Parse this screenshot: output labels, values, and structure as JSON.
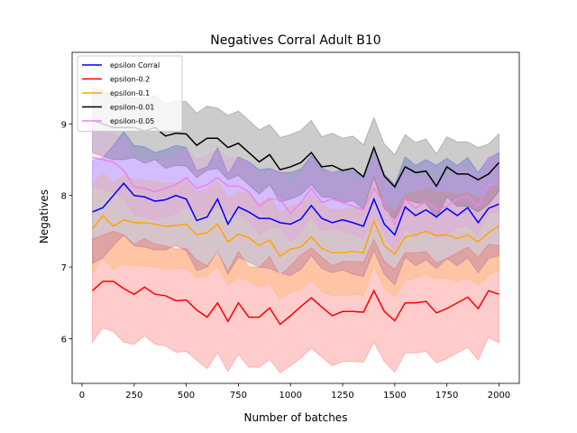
{
  "chart_data": {
    "type": "line",
    "title": "Negatives Corral Adult B10",
    "xlabel": "Number of batches",
    "ylabel": "Negatives",
    "x": [
      50,
      100,
      150,
      200,
      250,
      300,
      350,
      400,
      450,
      500,
      550,
      600,
      650,
      700,
      750,
      800,
      850,
      900,
      950,
      1000,
      1050,
      1100,
      1150,
      1200,
      1250,
      1300,
      1350,
      1400,
      1450,
      1500,
      1550,
      1600,
      1650,
      1700,
      1750,
      1800,
      1850,
      1900,
      1950,
      2000
    ],
    "xlim": [
      -47.5,
      2097.5
    ],
    "xticks": [
      0,
      250,
      500,
      750,
      1000,
      1250,
      1500,
      1750,
      2000
    ],
    "ylim": [
      5.375,
      10.0
    ],
    "yticks": [
      6,
      7,
      8,
      9
    ],
    "legend": "upper left",
    "band_opacity": 0.2,
    "series": [
      {
        "name": "epsilon Corral",
        "color": "#0000ff",
        "values": [
          7.77,
          7.83,
          8.0,
          8.17,
          8.0,
          7.98,
          7.92,
          7.94,
          8.0,
          7.95,
          7.65,
          7.7,
          7.95,
          7.6,
          7.84,
          7.77,
          7.68,
          7.68,
          7.62,
          7.6,
          7.67,
          7.86,
          7.68,
          7.62,
          7.66,
          7.62,
          7.57,
          7.95,
          7.6,
          7.45,
          7.84,
          7.72,
          7.8,
          7.7,
          7.82,
          7.72,
          7.83,
          7.62,
          7.82,
          7.88
        ],
        "std": [
          0.72,
          0.7,
          0.7,
          0.72,
          0.7,
          0.7,
          0.68,
          0.7,
          0.7,
          0.72,
          0.7,
          0.7,
          0.72,
          0.7,
          0.7,
          0.7,
          0.68,
          0.7,
          0.7,
          0.72,
          0.7,
          0.7,
          0.7,
          0.7,
          0.7,
          0.72,
          0.7,
          0.72,
          0.7,
          0.7,
          0.7,
          0.7,
          0.7,
          0.72,
          0.7,
          0.7,
          0.7,
          0.7,
          0.7,
          0.72
        ]
      },
      {
        "name": "epsilon-0.2",
        "color": "#ff0000",
        "values": [
          6.67,
          6.8,
          6.8,
          6.7,
          6.62,
          6.72,
          6.62,
          6.6,
          6.53,
          6.54,
          6.4,
          6.3,
          6.5,
          6.24,
          6.5,
          6.3,
          6.3,
          6.43,
          6.2,
          6.32,
          6.45,
          6.57,
          6.44,
          6.32,
          6.38,
          6.38,
          6.37,
          6.67,
          6.38,
          6.25,
          6.5,
          6.5,
          6.52,
          6.36,
          6.42,
          6.5,
          6.58,
          6.42,
          6.67,
          6.62
        ],
        "std": [
          0.72,
          0.65,
          0.7,
          0.75,
          0.7,
          0.68,
          0.7,
          0.7,
          0.72,
          0.72,
          0.7,
          0.72,
          0.7,
          0.7,
          0.72,
          0.7,
          0.7,
          0.72,
          0.68,
          0.7,
          0.72,
          0.7,
          0.7,
          0.7,
          0.7,
          0.7,
          0.7,
          0.72,
          0.7,
          0.72,
          0.7,
          0.7,
          0.7,
          0.7,
          0.7,
          0.7,
          0.7,
          0.72,
          0.65,
          0.68
        ]
      },
      {
        "name": "epsilon-0.1",
        "color": "#ffa500",
        "values": [
          7.53,
          7.72,
          7.57,
          7.66,
          7.62,
          7.62,
          7.6,
          7.57,
          7.58,
          7.6,
          7.45,
          7.48,
          7.6,
          7.35,
          7.46,
          7.41,
          7.3,
          7.38,
          7.15,
          7.25,
          7.28,
          7.42,
          7.26,
          7.2,
          7.2,
          7.22,
          7.2,
          7.65,
          7.3,
          7.18,
          7.42,
          7.45,
          7.5,
          7.44,
          7.45,
          7.4,
          7.45,
          7.35,
          7.48,
          7.58
        ],
        "std": [
          0.62,
          0.6,
          0.6,
          0.62,
          0.6,
          0.6,
          0.6,
          0.6,
          0.6,
          0.62,
          0.6,
          0.6,
          0.6,
          0.6,
          0.6,
          0.6,
          0.58,
          0.6,
          0.6,
          0.6,
          0.6,
          0.6,
          0.6,
          0.6,
          0.6,
          0.6,
          0.6,
          0.62,
          0.6,
          0.6,
          0.6,
          0.6,
          0.6,
          0.6,
          0.6,
          0.6,
          0.6,
          0.6,
          0.6,
          0.62
        ]
      },
      {
        "name": "epsilon-0.01",
        "color": "#000000",
        "values": [
          9.05,
          9.0,
          8.95,
          8.95,
          8.95,
          8.9,
          8.95,
          8.83,
          8.87,
          8.86,
          8.7,
          8.8,
          8.8,
          8.67,
          8.73,
          8.6,
          8.47,
          8.57,
          8.36,
          8.4,
          8.46,
          8.6,
          8.4,
          8.42,
          8.35,
          8.38,
          8.26,
          8.67,
          8.27,
          8.12,
          8.4,
          8.32,
          8.34,
          8.13,
          8.4,
          8.3,
          8.3,
          8.22,
          8.3,
          8.46
        ],
        "std": [
          0.45,
          0.45,
          0.45,
          0.45,
          0.42,
          0.45,
          0.45,
          0.45,
          0.45,
          0.45,
          0.45,
          0.45,
          0.42,
          0.45,
          0.45,
          0.45,
          0.45,
          0.42,
          0.45,
          0.45,
          0.45,
          0.45,
          0.42,
          0.45,
          0.45,
          0.45,
          0.45,
          0.42,
          0.45,
          0.45,
          0.45,
          0.42,
          0.45,
          0.45,
          0.42,
          0.45,
          0.45,
          0.45,
          0.42,
          0.4
        ]
      },
      {
        "name": "epsilon-0.05",
        "color": "#ee82ee",
        "values": [
          8.53,
          8.5,
          8.47,
          8.35,
          8.12,
          8.1,
          8.05,
          8.1,
          8.15,
          8.25,
          8.1,
          8.15,
          8.25,
          8.13,
          8.13,
          8.05,
          7.85,
          7.95,
          7.95,
          7.75,
          7.9,
          8.1,
          7.9,
          7.95,
          7.9,
          7.85,
          7.8,
          8.1,
          7.88,
          7.6,
          7.95,
          7.82,
          7.92,
          7.8,
          7.85,
          7.95,
          7.98,
          7.85,
          8.15,
          8.16
        ],
        "std": [
          0.4,
          0.42,
          0.42,
          0.4,
          0.4,
          0.4,
          0.4,
          0.4,
          0.4,
          0.4,
          0.4,
          0.4,
          0.4,
          0.4,
          0.4,
          0.4,
          0.4,
          0.4,
          0.4,
          0.4,
          0.4,
          0.4,
          0.4,
          0.4,
          0.4,
          0.4,
          0.4,
          0.4,
          0.4,
          0.4,
          0.4,
          0.4,
          0.4,
          0.4,
          0.4,
          0.4,
          0.4,
          0.4,
          0.4,
          0.4
        ]
      }
    ]
  }
}
